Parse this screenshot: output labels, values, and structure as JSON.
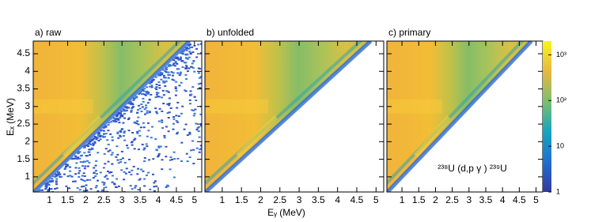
{
  "chart_data": {
    "type": "heatmap",
    "x_label": "Eᵧ (MeV)",
    "y_label": "Eₓ (MeV)",
    "xlim": [
      0.55,
      5.2
    ],
    "xticks": [
      1,
      1.5,
      2,
      2.5,
      3,
      3.5,
      4,
      4.5,
      5
    ],
    "ylim": [
      0.57,
      4.86
    ],
    "yticks": [
      1,
      1.5,
      2,
      2.5,
      3,
      3.5,
      4,
      4.5
    ],
    "panels": [
      {
        "title": "a) raw",
        "below_diagonal": true
      },
      {
        "title": "b) unfolded",
        "below_diagonal": false
      },
      {
        "title": "c) primary",
        "below_diagonal": false
      }
    ],
    "colorbar": {
      "zlim": [
        1,
        2000
      ],
      "log": true,
      "zticks": [
        1,
        10,
        {
          "value": 100,
          "label": "10²"
        },
        {
          "value": 1000,
          "label": "10³"
        }
      ]
    },
    "annotation": "²³⁸U (d,p γ ) ²³⁹U"
  }
}
